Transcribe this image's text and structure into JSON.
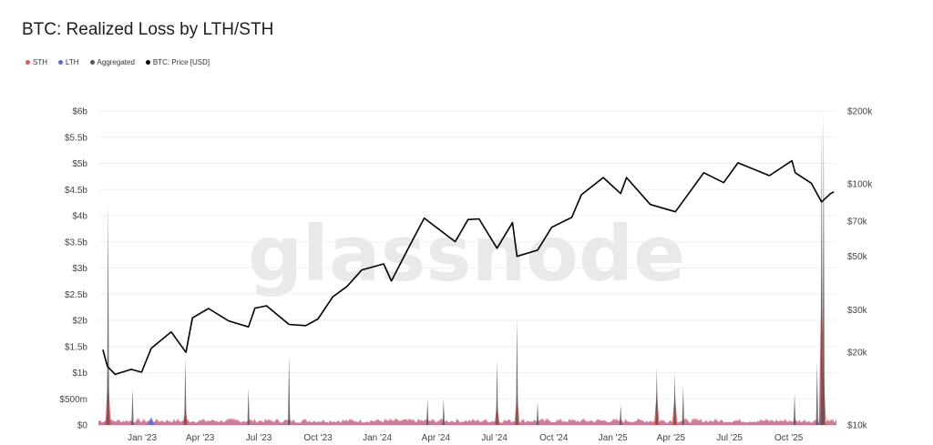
{
  "chart_data": {
    "type": "area",
    "title": "BTC: Realized Loss by LTH/STH",
    "watermark": "glassnode",
    "legend": [
      {
        "name": "STH",
        "color": "#e8535b"
      },
      {
        "name": "LTH",
        "color": "#5b6fd8"
      },
      {
        "name": "Aggregated",
        "color": "#555555"
      },
      {
        "name": "BTC: Price [USD]",
        "color": "#000000"
      }
    ],
    "y_left": {
      "ticks": [
        "$0",
        "$500m",
        "$1b",
        "$1.5b",
        "$2b",
        "$2.5b",
        "$3b",
        "$3.5b",
        "$4b",
        "$4.5b",
        "$5b",
        "$5.5b",
        "$6b"
      ],
      "ylim": [
        0,
        6
      ],
      "unit": "billion USD"
    },
    "y_right": {
      "scale": "log",
      "ticks": [
        "$10k",
        "$20k",
        "$30k",
        "$50k",
        "$70k",
        "$100k",
        "$200k"
      ],
      "ylim": [
        10000,
        200000
      ]
    },
    "x_ticks": [
      "Jan '23",
      "Apr '23",
      "Jul '23",
      "Oct '23",
      "Jan '24",
      "Apr '24",
      "Jul '24",
      "Oct '24",
      "Jan '25",
      "Apr '25",
      "Jul '25",
      "Oct '25"
    ],
    "grid": true,
    "legend_position": "top-left",
    "series": [
      {
        "name": "BTC: Price [USD]",
        "color": "#000000",
        "points": [
          [
            "2022-11-01",
            20500
          ],
          [
            "2022-11-08",
            17500
          ],
          [
            "2022-11-20",
            16200
          ],
          [
            "2022-12-15",
            17000
          ],
          [
            "2022-12-31",
            16550
          ],
          [
            "2023-01-15",
            20800
          ],
          [
            "2023-02-15",
            24300
          ],
          [
            "2023-03-10",
            20000
          ],
          [
            "2023-03-20",
            27800
          ],
          [
            "2023-04-14",
            30400
          ],
          [
            "2023-05-15",
            27000
          ],
          [
            "2023-06-15",
            25500
          ],
          [
            "2023-06-25",
            30500
          ],
          [
            "2023-07-13",
            31200
          ],
          [
            "2023-08-17",
            26100
          ],
          [
            "2023-09-12",
            25800
          ],
          [
            "2023-10-01",
            27500
          ],
          [
            "2023-10-24",
            34000
          ],
          [
            "2023-11-15",
            37500
          ],
          [
            "2023-12-08",
            43900
          ],
          [
            "2024-01-11",
            46500
          ],
          [
            "2024-01-23",
            39500
          ],
          [
            "2024-02-15",
            52000
          ],
          [
            "2024-03-14",
            72000
          ],
          [
            "2024-05-01",
            57500
          ],
          [
            "2024-05-21",
            71000
          ],
          [
            "2024-06-07",
            71500
          ],
          [
            "2024-07-05",
            54000
          ],
          [
            "2024-07-29",
            69000
          ],
          [
            "2024-08-05",
            50000
          ],
          [
            "2024-09-06",
            53000
          ],
          [
            "2024-09-28",
            66000
          ],
          [
            "2024-10-29",
            72500
          ],
          [
            "2024-11-13",
            90000
          ],
          [
            "2024-12-17",
            106000
          ],
          [
            "2025-01-13",
            91000
          ],
          [
            "2025-01-22",
            106000
          ],
          [
            "2025-02-28",
            82000
          ],
          [
            "2025-04-08",
            76500
          ],
          [
            "2025-05-22",
            111000
          ],
          [
            "2025-06-22",
            101000
          ],
          [
            "2025-07-14",
            122000
          ],
          [
            "2025-09-01",
            108000
          ],
          [
            "2025-10-06",
            124500
          ],
          [
            "2025-10-11",
            111000
          ],
          [
            "2025-11-05",
            100500
          ],
          [
            "2025-11-21",
            84000
          ],
          [
            "2025-12-05",
            91000
          ],
          [
            "2025-12-10",
            92500
          ]
        ]
      },
      {
        "name": "Aggregated",
        "color": "#555555",
        "points": [
          [
            "2022-11-09",
            4.3
          ],
          [
            "2022-12-17",
            0.7
          ],
          [
            "2023-03-09",
            1.3
          ],
          [
            "2023-06-15",
            0.7
          ],
          [
            "2023-08-17",
            1.35
          ],
          [
            "2024-03-19",
            0.5
          ],
          [
            "2024-04-13",
            0.5
          ],
          [
            "2024-07-05",
            1.25
          ],
          [
            "2024-08-05",
            2.05
          ],
          [
            "2024-09-06",
            0.45
          ],
          [
            "2025-01-13",
            0.4
          ],
          [
            "2025-03-10",
            1.1
          ],
          [
            "2025-04-07",
            1.0
          ],
          [
            "2025-04-20",
            0.75
          ],
          [
            "2025-10-10",
            0.6
          ],
          [
            "2025-11-14",
            1.2
          ],
          [
            "2025-11-21",
            5.7
          ],
          [
            "2025-11-24",
            6.0
          ]
        ]
      },
      {
        "name": "STH",
        "color": "#e8535b",
        "points": [
          [
            "2022-11-09",
            1.0
          ],
          [
            "2023-03-09",
            0.3
          ],
          [
            "2024-07-05",
            0.4
          ],
          [
            "2024-08-05",
            0.6
          ],
          [
            "2025-03-10",
            0.65
          ],
          [
            "2025-04-07",
            0.6
          ],
          [
            "2025-11-21",
            3.0
          ],
          [
            "2025-11-24",
            1.0
          ]
        ]
      },
      {
        "name": "LTH",
        "color": "#5b6fd8",
        "points": [
          [
            "2022-11-09",
            0.35
          ],
          [
            "2023-01-15",
            0.15
          ],
          [
            "2025-11-21",
            0.35
          ]
        ]
      }
    ]
  }
}
